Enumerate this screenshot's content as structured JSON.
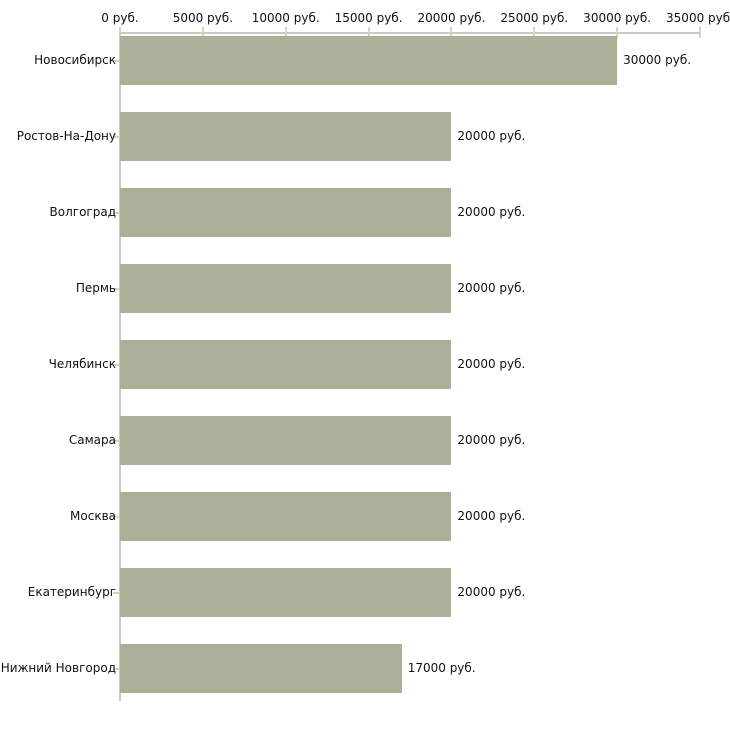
{
  "chart_data": {
    "type": "bar",
    "orientation": "horizontal",
    "title": "",
    "xlabel": "",
    "ylabel": "",
    "categories": [
      "Новосибирск",
      "Ростов-На-Дону",
      "Волгоград",
      "Пермь",
      "Челябинск",
      "Самара",
      "Москва",
      "Екатеринбург",
      "Нижний Новгород"
    ],
    "values": [
      30000,
      20000,
      20000,
      20000,
      20000,
      20000,
      20000,
      20000,
      17000
    ],
    "value_labels": [
      "30000 руб.",
      "20000 руб.",
      "20000 руб.",
      "20000 руб.",
      "20000 руб.",
      "20000 руб.",
      "20000 руб.",
      "20000 руб.",
      "17000 руб."
    ],
    "x_ticks": [
      0,
      5000,
      10000,
      15000,
      20000,
      25000,
      30000,
      35000
    ],
    "x_tick_labels": [
      "0 руб.",
      "5000 руб.",
      "10000 руб.",
      "15000 руб.",
      "20000 руб.",
      "25000 руб.",
      "30000 руб.",
      "35000 руб."
    ],
    "xlim": [
      0,
      35000
    ],
    "grid": "off",
    "legend": null,
    "colors": {
      "bar": "#abaf97",
      "tick": "#d5d6a9",
      "axis_line": "#c9c9c9",
      "text": "#111111",
      "background": "#ffffff"
    }
  }
}
